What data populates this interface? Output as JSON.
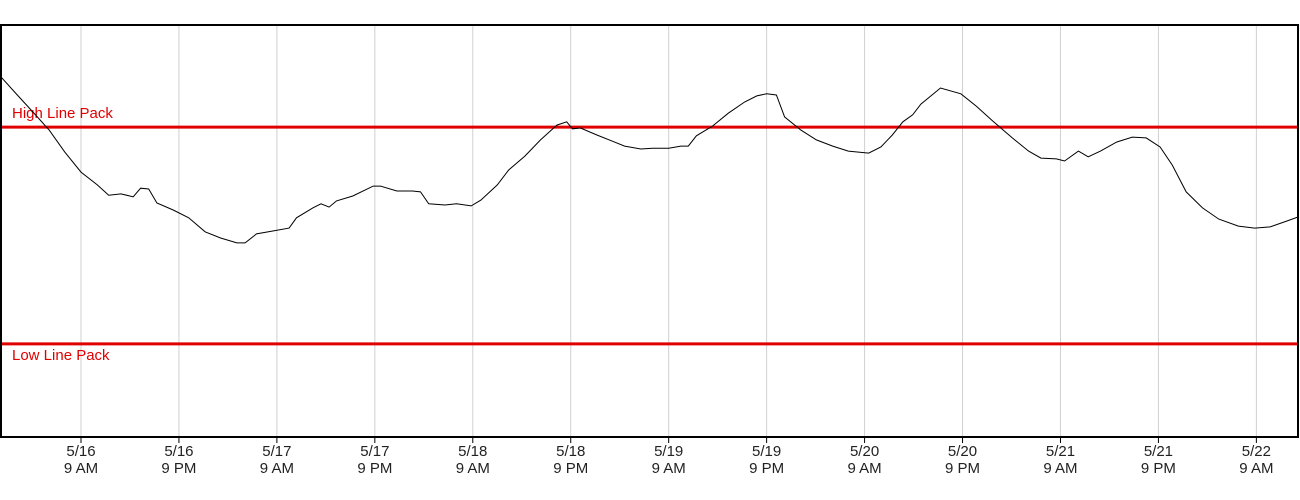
{
  "chart_data": {
    "type": "line",
    "x": [
      -0.8,
      1.2,
      3.1,
      5.1,
      7.0,
      9.0,
      11.0,
      12.4,
      13.9,
      15.4,
      16.3,
      17.3,
      18.3,
      20.3,
      22.2,
      24.2,
      26.1,
      28.1,
      29.1,
      30.5,
      32.5,
      34.5,
      35.4,
      37.4,
      38.4,
      39.4,
      40.3,
      42.3,
      44.8,
      45.7,
      47.7,
      49.6,
      50.6,
      51.6,
      53.6,
      55.0,
      56.8,
      58.0,
      60.0,
      61.4,
      63.4,
      65.3,
      67.3,
      68.5,
      69.2,
      70.2,
      72.2,
      74.1,
      75.6,
      77.6,
      79.0,
      81.0,
      82.5,
      83.4,
      84.4,
      86.4,
      88.3,
      90.3,
      91.8,
      93.0,
      94.2,
      95.2,
      97.2,
      99.1,
      101.1,
      103.0,
      105.5,
      107.0,
      108.4,
      109.7,
      110.9,
      111.9,
      114.3,
      116.8,
      118.7,
      120.7,
      123.1,
      125.1,
      126.6,
      128.5,
      129.5,
      131.2,
      132.4,
      133.9,
      135.9,
      137.8,
      139.5,
      141.2,
      142.7,
      144.4,
      146.4,
      148.4,
      150.8,
      152.8,
      154.7,
      156.7,
      158.1
    ],
    "series": [
      {
        "color": "#000000",
        "values": [
          87.4,
          83.0,
          78.9,
          74.5,
          69.2,
          64.3,
          61.2,
          58.7,
          59.0,
          58.3,
          60.4,
          60.2,
          56.8,
          55.1,
          53.2,
          49.8,
          48.3,
          47.1,
          47.1,
          49.3,
          50.0,
          50.7,
          53.2,
          55.6,
          56.6,
          55.8,
          57.3,
          58.5,
          60.9,
          60.9,
          59.7,
          59.7,
          59.5,
          56.6,
          56.3,
          56.6,
          56.1,
          57.5,
          61.2,
          64.8,
          68.2,
          72.1,
          75.7,
          76.5,
          74.8,
          75.0,
          73.3,
          71.8,
          70.6,
          69.9,
          70.1,
          70.1,
          70.6,
          70.6,
          73.1,
          75.5,
          78.6,
          81.3,
          82.8,
          83.3,
          83.0,
          77.7,
          74.5,
          72.1,
          70.6,
          69.4,
          68.9,
          70.4,
          73.3,
          76.5,
          78.2,
          80.8,
          84.7,
          83.3,
          80.3,
          76.7,
          72.6,
          69.4,
          67.7,
          67.5,
          67.0,
          69.4,
          68.0,
          69.4,
          71.6,
          72.8,
          72.6,
          70.4,
          66.0,
          59.5,
          55.6,
          52.9,
          51.2,
          50.7,
          51.0,
          52.4,
          53.4
        ]
      }
    ],
    "xlim": [
      -0.8,
      158.1
    ],
    "ylim": [
      0,
      100
    ],
    "xticks": [
      {
        "value": 9,
        "label": "5/16\n9 AM"
      },
      {
        "value": 21,
        "label": "5/16\n9 PM"
      },
      {
        "value": 33,
        "label": "5/17\n9 AM"
      },
      {
        "value": 45,
        "label": "5/17\n9 PM"
      },
      {
        "value": 57,
        "label": "5/18\n9 AM"
      },
      {
        "value": 69,
        "label": "5/18\n9 PM"
      },
      {
        "value": 81,
        "label": "5/19\n9 AM"
      },
      {
        "value": 93,
        "label": "5/19\n9 PM"
      },
      {
        "value": 105,
        "label": "5/20\n9 AM"
      },
      {
        "value": 117,
        "label": "5/20\n9 PM"
      },
      {
        "value": 129,
        "label": "5/21\n9 AM"
      },
      {
        "value": 141,
        "label": "5/21\n9 PM"
      },
      {
        "value": 153,
        "label": "5/22\n9 AM"
      }
    ],
    "grid": true,
    "reference_lines": [
      {
        "label": "High Line Pack",
        "value": 75.2,
        "color": "#e00000"
      },
      {
        "label": "Low Line Pack",
        "value": 22.6,
        "color": "#e00000"
      }
    ]
  }
}
